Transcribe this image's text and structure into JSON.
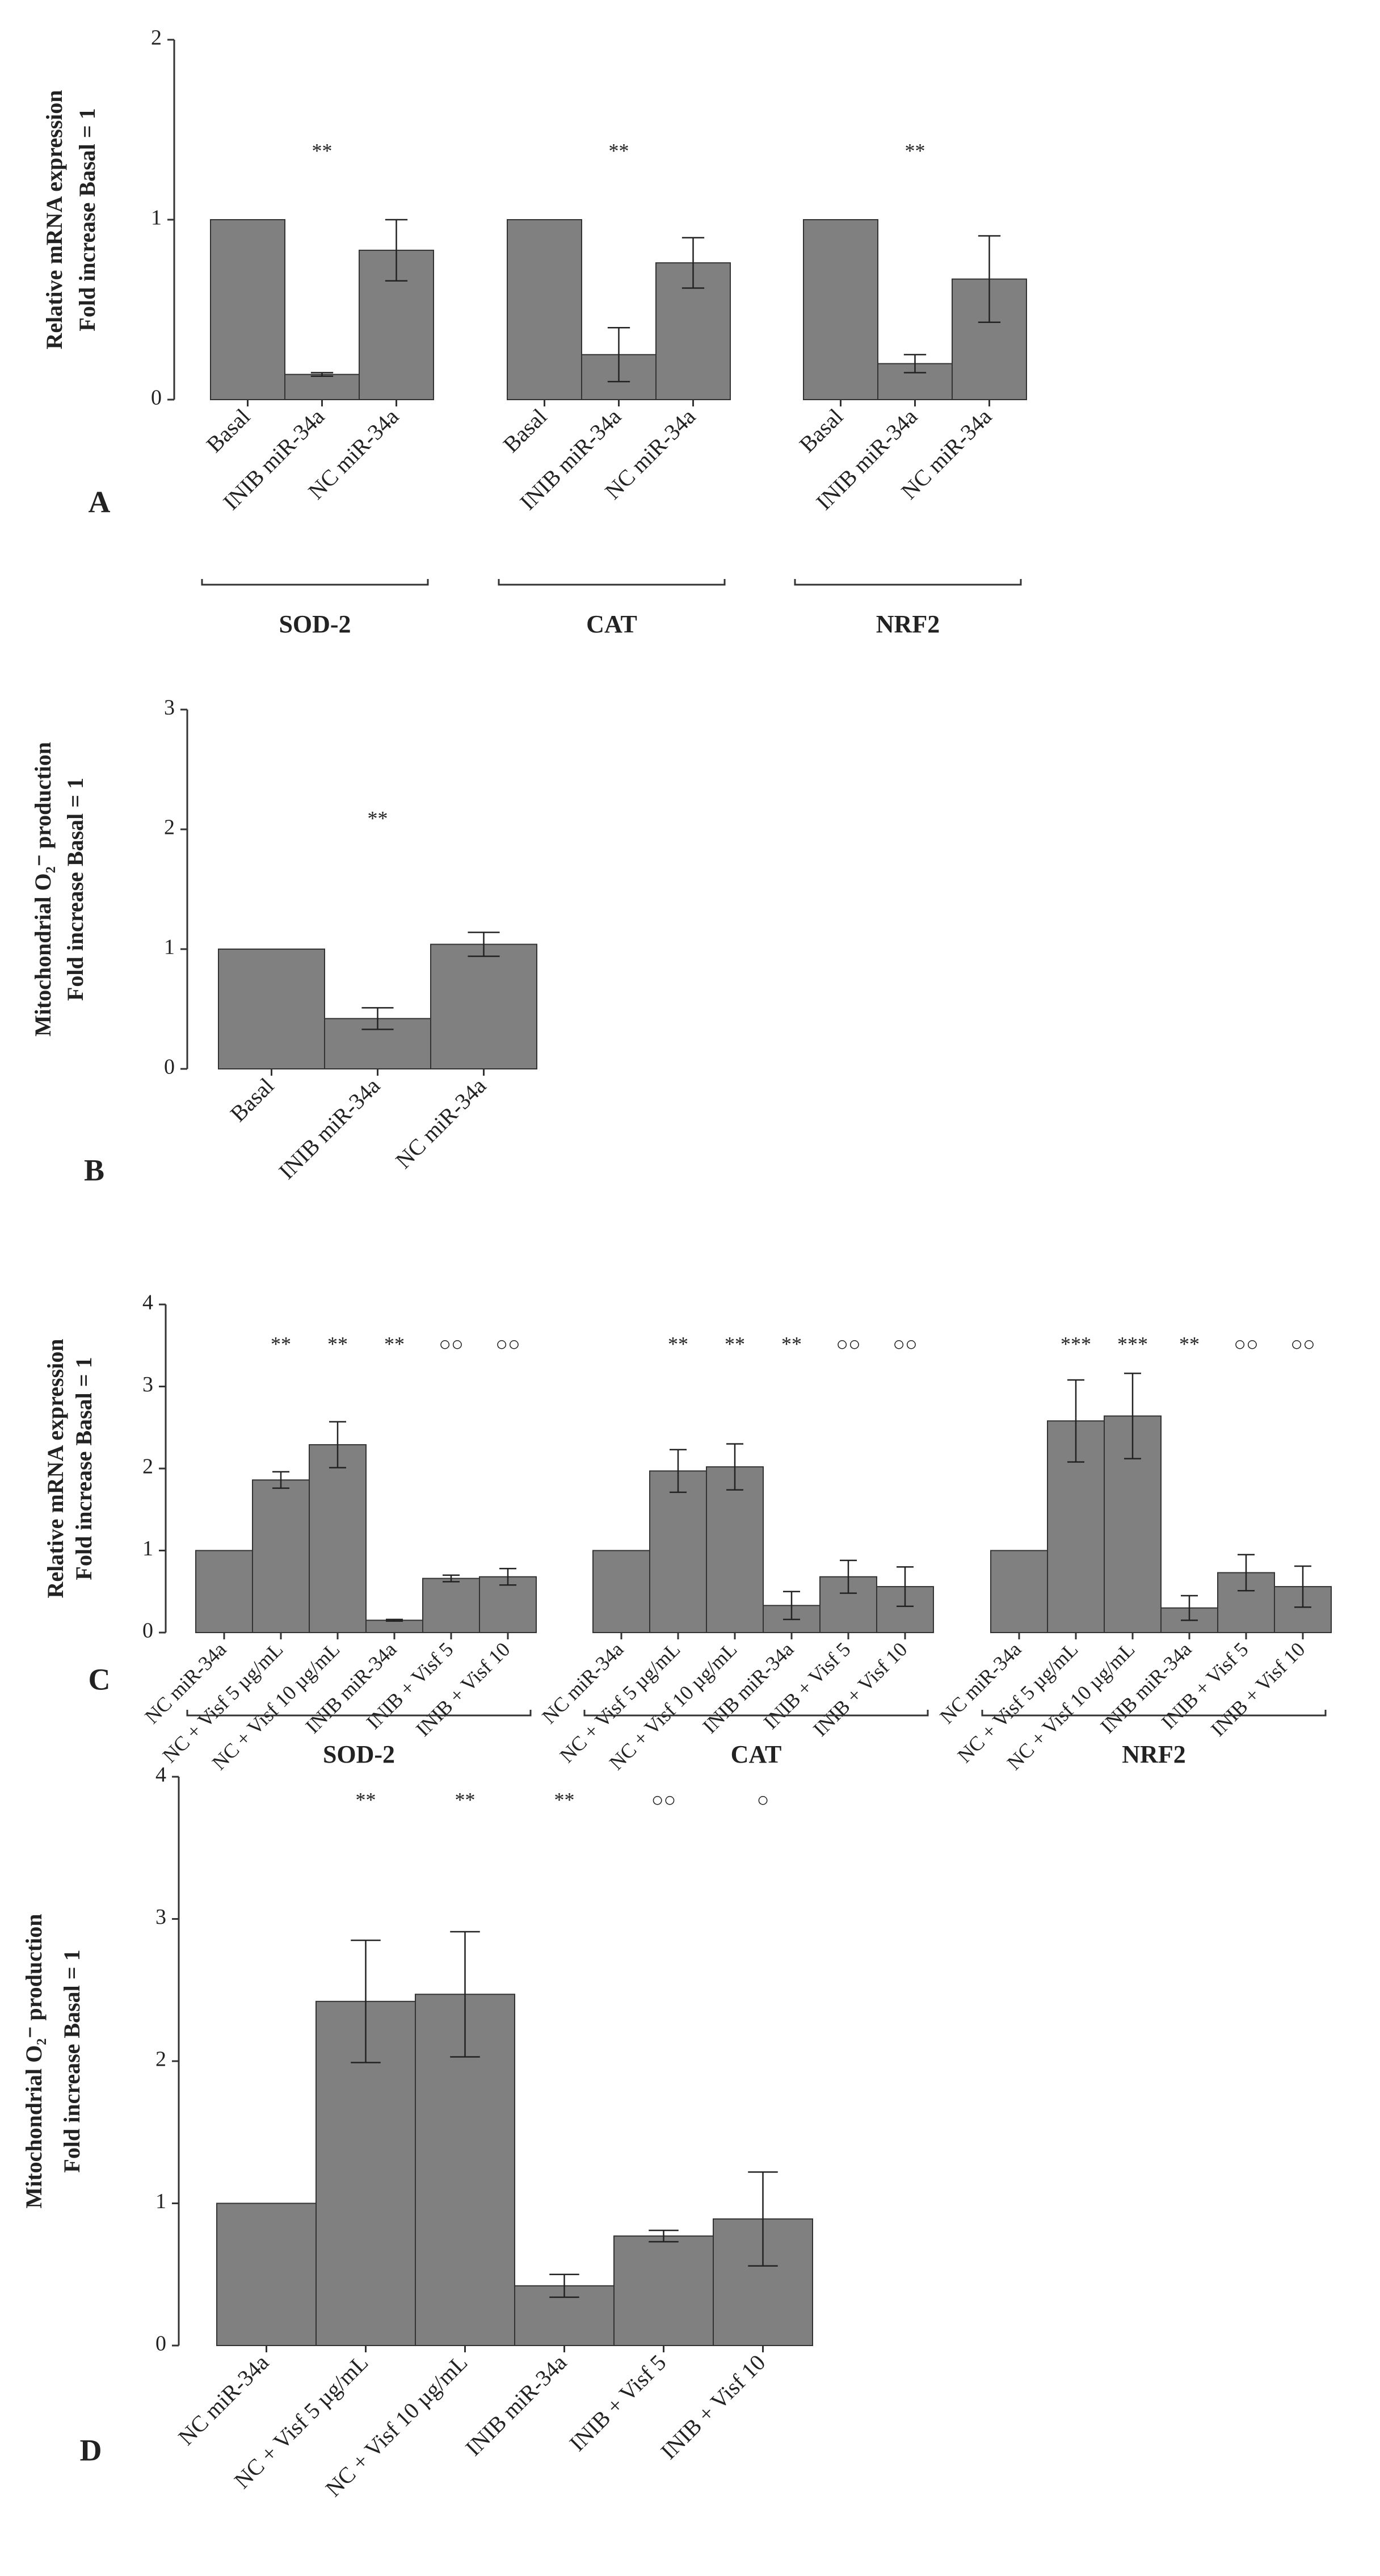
{
  "chart_data": [
    {
      "type": "bar",
      "panel": "A",
      "color": "#808080",
      "y_label": [
        "Relative mRNA expression",
        "Fold increase Basal = 1"
      ],
      "ylim": [
        0,
        2
      ],
      "yticks": [
        0,
        1,
        2
      ],
      "groups": [
        {
          "name": "SOD-2",
          "categories": [
            "Basal",
            "INIB miR-34a",
            "NC miR-34a"
          ],
          "values": [
            1,
            0.14,
            0.83
          ],
          "errors": [
            null,
            0.01,
            0.17
          ],
          "annotations": [
            null,
            "**",
            null
          ]
        },
        {
          "name": "CAT",
          "categories": [
            "Basal",
            "INIB miR-34a",
            "NC miR-34a"
          ],
          "values": [
            1,
            0.25,
            0.76
          ],
          "errors": [
            null,
            0.15,
            0.14
          ],
          "annotations": [
            null,
            "**",
            null
          ]
        },
        {
          "name": "NRF2",
          "categories": [
            "Basal",
            "INIB miR-34a",
            "NC miR-34a"
          ],
          "values": [
            1,
            0.2,
            0.67
          ],
          "errors": [
            null,
            0.05,
            0.24
          ],
          "annotations": [
            null,
            "**",
            null
          ]
        }
      ]
    },
    {
      "type": "bar",
      "panel": "B",
      "color": "#808080",
      "y_label": [
        "Mitochondrial O₂⁻ production",
        "Fold increase Basal = 1"
      ],
      "ylim": [
        0,
        3
      ],
      "yticks": [
        0,
        1,
        2,
        3
      ],
      "groups": [
        {
          "categories": [
            "Basal",
            "INIB miR-34a",
            "NC miR-34a"
          ],
          "values": [
            1,
            0.42,
            1.04
          ],
          "errors": [
            null,
            0.09,
            0.1
          ],
          "annotations": [
            null,
            "**",
            null
          ]
        }
      ]
    },
    {
      "type": "bar",
      "panel": "C",
      "color": "#808080",
      "y_label": [
        "Relative mRNA expression",
        "Fold increase Basal = 1"
      ],
      "ylim": [
        0,
        4
      ],
      "yticks": [
        0,
        1,
        2,
        3,
        4
      ],
      "groups": [
        {
          "name": "SOD-2",
          "categories": [
            "NC miR-34a",
            "NC + Visf 5 µg/mL",
            "NC + Visf 10 µg/mL",
            "INIB miR-34a",
            "INIB + Visf 5",
            "INIB + Visf 10"
          ],
          "values": [
            1,
            1.86,
            2.29,
            0.15,
            0.66,
            0.68
          ],
          "errors": [
            null,
            0.1,
            0.28,
            0.01,
            0.04,
            0.1
          ],
          "annotations": [
            null,
            "**",
            "**",
            "**",
            "○○",
            "○○"
          ]
        },
        {
          "name": "CAT",
          "categories": [
            "NC miR-34a",
            "NC + Visf 5 µg/mL",
            "NC + Visf 10 µg/mL",
            "INIB miR-34a",
            "INIB + Visf 5",
            "INIB + Visf 10"
          ],
          "values": [
            1,
            1.97,
            2.02,
            0.33,
            0.68,
            0.56
          ],
          "errors": [
            null,
            0.26,
            0.28,
            0.17,
            0.2,
            0.24
          ],
          "annotations": [
            null,
            "**",
            "**",
            "**",
            "○○",
            "○○"
          ]
        },
        {
          "name": "NRF2",
          "categories": [
            "NC miR-34a",
            "NC + Visf 5 µg/mL",
            "NC + Visf 10 µg/mL",
            "INIB miR-34a",
            "INIB + Visf 5",
            "INIB + Visf 10"
          ],
          "values": [
            1,
            2.58,
            2.64,
            0.3,
            0.73,
            0.56
          ],
          "errors": [
            null,
            0.5,
            0.52,
            0.15,
            0.22,
            0.25
          ],
          "annotations": [
            null,
            "***",
            "***",
            "**",
            "○○",
            "○○"
          ]
        }
      ]
    },
    {
      "type": "bar",
      "panel": "D",
      "color": "#808080",
      "y_label": [
        "Mitochondrial O₂⁻ production",
        "Fold increase Basal = 1"
      ],
      "ylim": [
        0,
        4
      ],
      "yticks": [
        0,
        1,
        2,
        3,
        4
      ],
      "groups": [
        {
          "categories": [
            "NC miR-34a",
            "NC + Visf 5 µg/mL",
            "NC + Visf 10 µg/mL",
            "INIB miR-34a",
            "INIB + Visf 5",
            "INIB + Visf 10"
          ],
          "values": [
            1,
            2.42,
            2.47,
            0.42,
            0.77,
            0.89
          ],
          "errors": [
            null,
            0.43,
            0.44,
            0.08,
            0.04,
            0.33
          ],
          "annotations": [
            null,
            "**",
            "**",
            "**",
            "○○",
            "○"
          ]
        }
      ]
    }
  ]
}
